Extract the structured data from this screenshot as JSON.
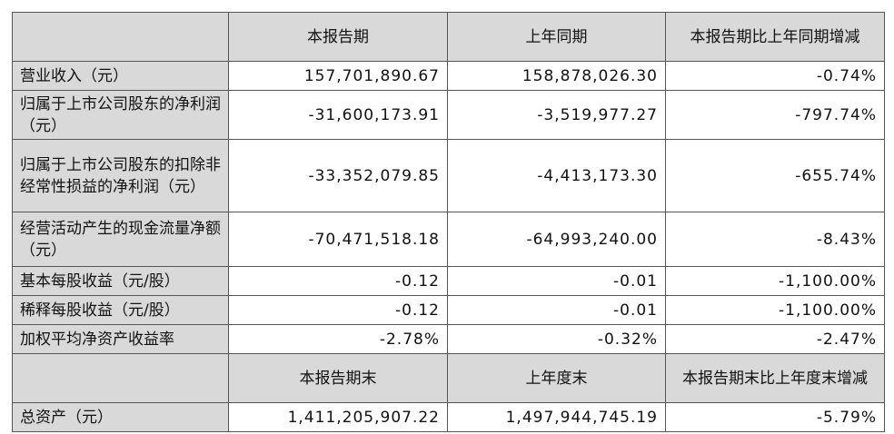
{
  "table": {
    "header": [
      "本报告期",
      "上年同期",
      "本报告期比上年同期增减"
    ],
    "rows": [
      [
        "营业收入（元）",
        "157,701,890.67",
        "158,878,026.30",
        "-0.74%"
      ],
      [
        "归属于上市公司股东的净利润（元）",
        "-31,600,173.91",
        "-3,519,977.27",
        "-797.74%"
      ],
      [
        "归属于上市公司股东的扣除非经常性损益的净利润（元）",
        "-33,352,079.85",
        "-4,413,173.30",
        "-655.74%"
      ],
      [
        "经营活动产生的现金流量净额（元）",
        "-70,471,518.18",
        "-64,993,240.00",
        "-8.43%"
      ],
      [
        "基本每股收益（元/股）",
        "-0.12",
        "-0.01",
        "-1,100.00%"
      ],
      [
        "稀释每股收益（元/股）",
        "-0.12",
        "-0.01",
        "-1,100.00%"
      ],
      [
        "加权平均净资产收益率",
        "-2.78%",
        "-0.32%",
        "-2.47%"
      ]
    ],
    "header2": [
      "本报告期末",
      "上年度末",
      "本报告期末比上年度末增减"
    ],
    "rows2": [
      [
        "总资产（元）",
        "1,411,205,907.22",
        "1,497,944,745.19",
        "-5.79%"
      ]
    ]
  }
}
